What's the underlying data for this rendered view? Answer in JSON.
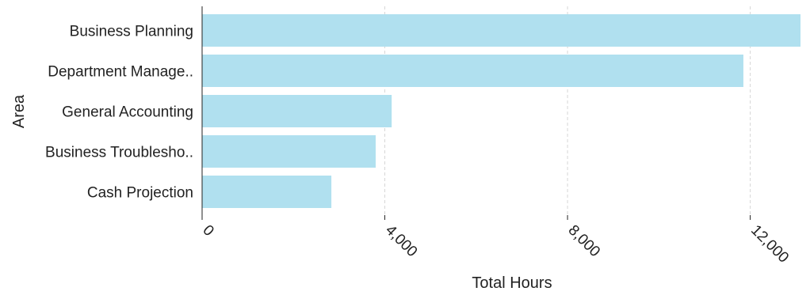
{
  "chart_data": {
    "type": "bar",
    "orientation": "horizontal",
    "categories": [
      "Business Planning",
      "Department Manage..",
      "General Accounting",
      "Business Troublesho..",
      "Cash Projection"
    ],
    "values": [
      13100,
      11850,
      4150,
      3800,
      2830
    ],
    "xlabel": "Total Hours",
    "ylabel": "Area",
    "xlim": [
      0,
      13100
    ],
    "x_ticks": [
      0,
      4000,
      8000,
      12000
    ],
    "x_tick_labels": [
      "0",
      "4,000",
      "8,000",
      "12,000"
    ],
    "grid": "vertical dashed",
    "colors": {
      "bar": "#b0e0ef",
      "grid": "#d6d6d6",
      "axis": "#222222"
    }
  }
}
